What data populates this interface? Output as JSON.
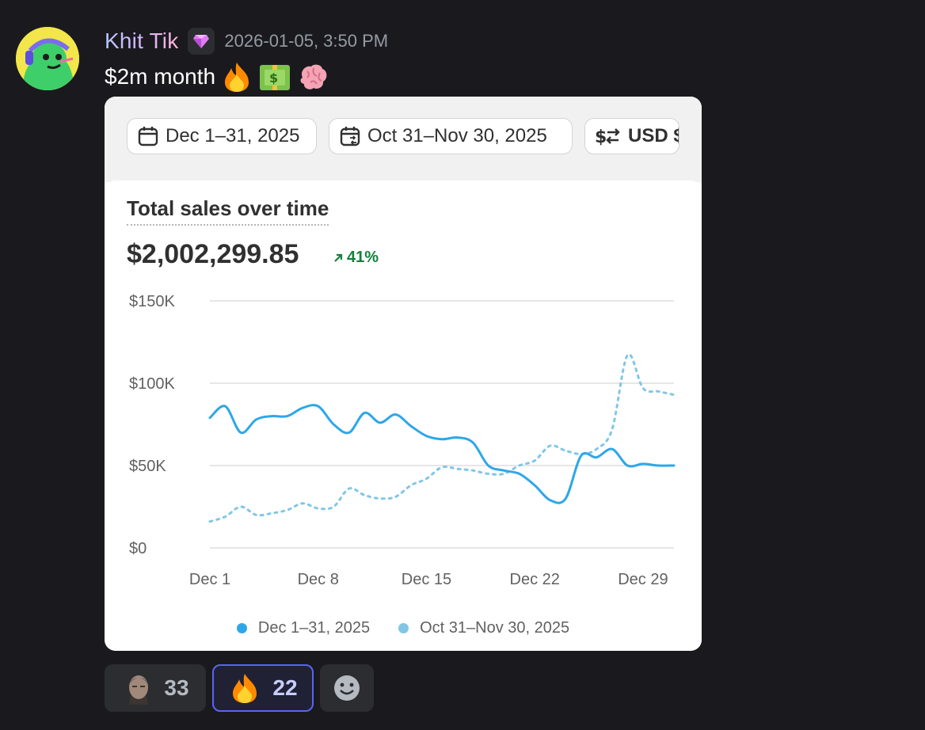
{
  "message": {
    "username": "Khit Tik",
    "timestamp": "2026-01-05, 3:50 PM",
    "text": "$2m month",
    "emojis": [
      "fire-emoji",
      "money-emoji",
      "brain-emoji"
    ]
  },
  "card": {
    "filters": {
      "date_range": "Dec 1–31, 2025",
      "compare_range": "Oct 31–Nov 30, 2025",
      "currency": "USD $"
    },
    "title": "Total sales over time",
    "total": "$2,002,299.85",
    "change": "41%"
  },
  "chart_data": {
    "type": "line",
    "ylim": [
      0,
      150000
    ],
    "y_ticks": [
      "$0",
      "$50K",
      "$100K",
      "$150K"
    ],
    "x_tick_labels": [
      "Dec 1",
      "Dec 8",
      "Dec 15",
      "Dec 22",
      "Dec 29"
    ],
    "x": [
      1,
      2,
      3,
      4,
      5,
      6,
      7,
      8,
      9,
      10,
      11,
      12,
      13,
      14,
      15,
      16,
      17,
      18,
      19,
      20,
      21,
      22,
      23,
      24,
      25,
      26,
      27,
      28,
      29,
      30,
      31
    ],
    "series": [
      {
        "name": "Dec 1–31, 2025",
        "color": "#2ea7e8",
        "style": "solid",
        "values": [
          79000,
          86000,
          70000,
          78000,
          80000,
          80000,
          85000,
          86000,
          75000,
          70000,
          82000,
          76000,
          81000,
          74000,
          68000,
          66000,
          67000,
          64000,
          50000,
          47000,
          45000,
          38000,
          29000,
          30000,
          56000,
          55000,
          60000,
          50000,
          51000,
          50000,
          50000
        ]
      },
      {
        "name": "Oct 31–Nov 30, 2025",
        "color": "#82c6e6",
        "style": "dotted",
        "values": [
          16000,
          19000,
          25000,
          20000,
          21000,
          23000,
          27000,
          24000,
          25000,
          36000,
          32000,
          30000,
          31000,
          38000,
          42000,
          49000,
          48000,
          47000,
          45000,
          45000,
          50000,
          53000,
          62000,
          59000,
          57000,
          60000,
          72000,
          117000,
          97000,
          95000,
          93000
        ]
      }
    ],
    "legend": "bottom-center"
  },
  "reactions": [
    {
      "emoji": "person-emoji",
      "count": "33"
    },
    {
      "emoji": "fire-emoji",
      "count": "22",
      "active": true
    },
    {
      "emoji": "add-reaction-icon",
      "count": ""
    }
  ]
}
